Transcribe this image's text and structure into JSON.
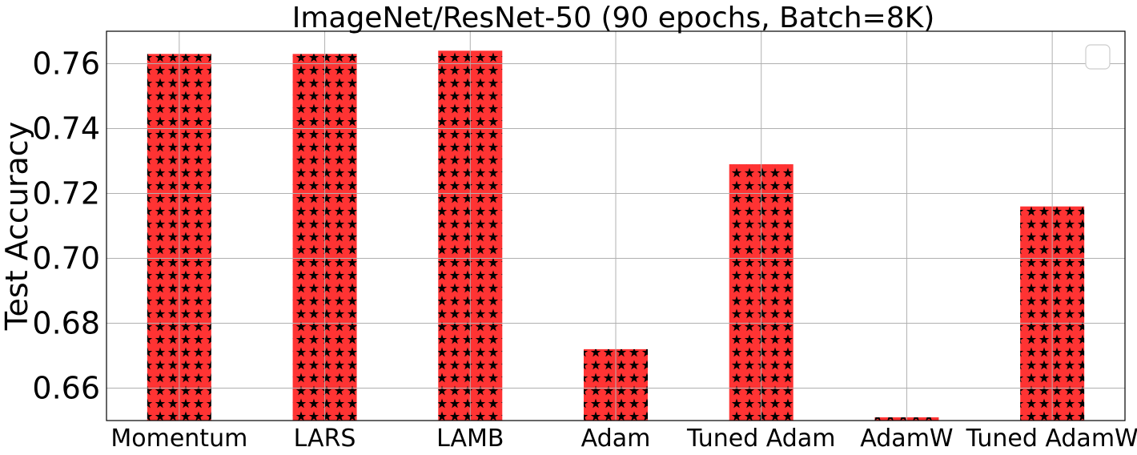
{
  "chart_data": {
    "type": "bar",
    "title": "ImageNet/ResNet-50 (90 epochs, Batch=8K)",
    "xlabel": "",
    "ylabel": "Test Accuracy",
    "categories": [
      "Momentum",
      "LARS",
      "LAMB",
      "Adam",
      "Tuned Adam",
      "AdamW",
      "Tuned AdamW"
    ],
    "values": [
      0.763,
      0.763,
      0.764,
      0.672,
      0.729,
      0.651,
      0.716
    ],
    "ylim": [
      0.65,
      0.77
    ],
    "yticks": [
      "0.66",
      "0.68",
      "0.70",
      "0.72",
      "0.74",
      "0.76"
    ],
    "grid": true,
    "legend": "top-right",
    "bar_color": "#ff3333",
    "hatch": "stars",
    "hatch_color": "#000000"
  }
}
